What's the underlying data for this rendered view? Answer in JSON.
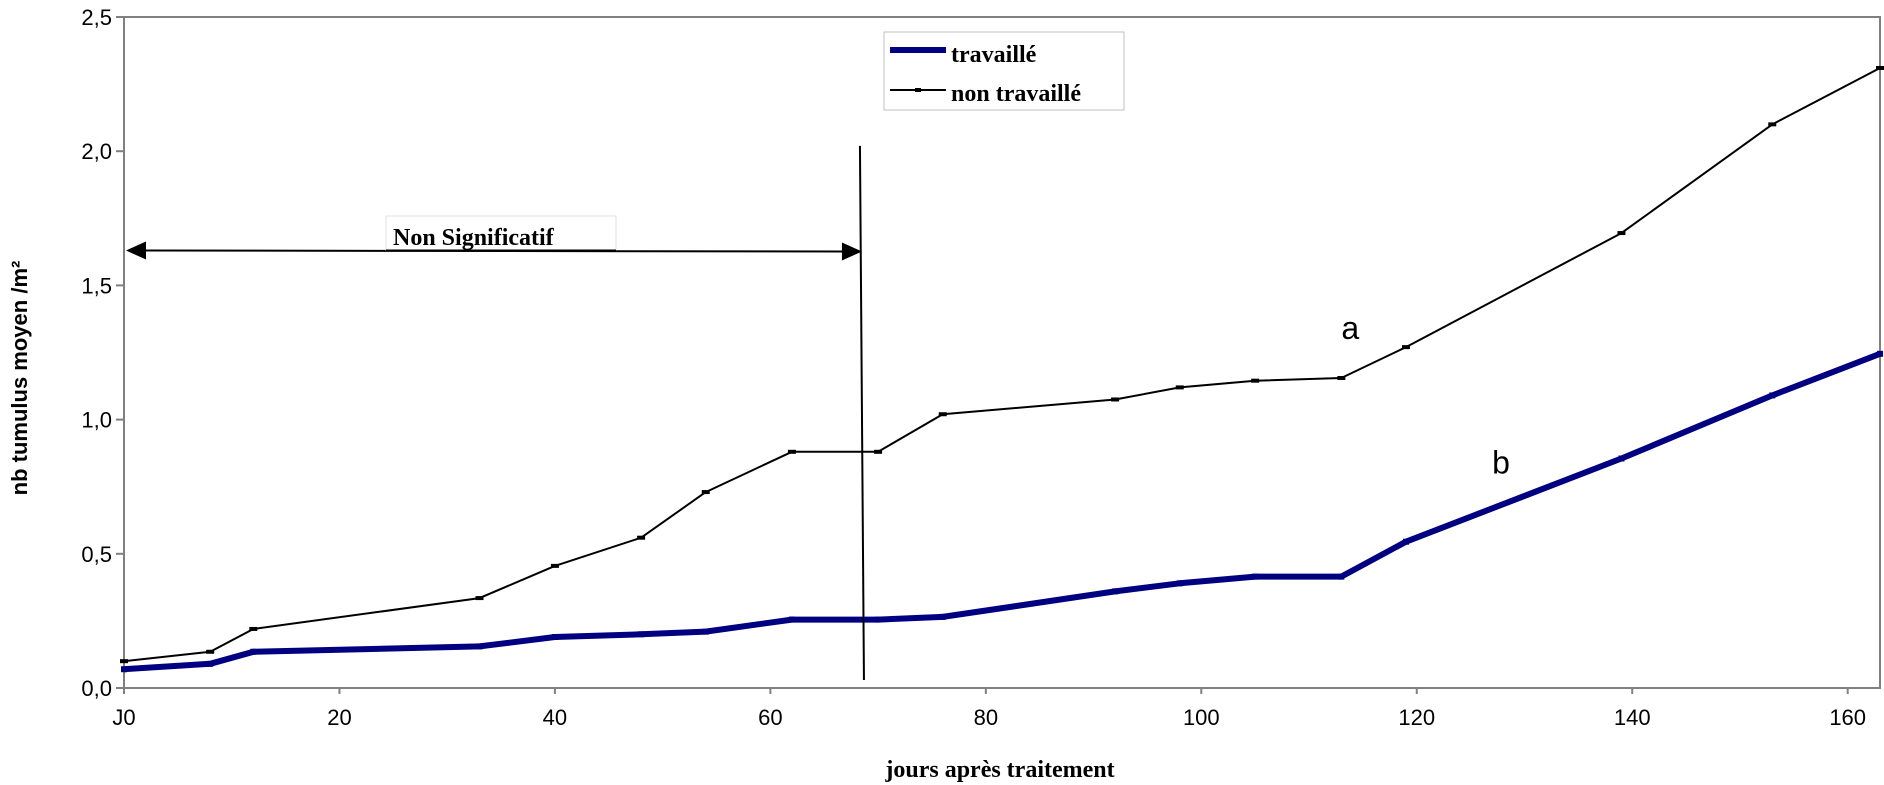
{
  "chart_data": {
    "type": "line",
    "xlabel": "jours après traitement",
    "ylabel": "nb tumulus moyen /m²",
    "xlim": [
      0,
      163
    ],
    "ylim": [
      0,
      2.5
    ],
    "x_ticks": [
      {
        "value": 0,
        "label": "J0"
      },
      {
        "value": 20,
        "label": "20"
      },
      {
        "value": 40,
        "label": "40"
      },
      {
        "value": 60,
        "label": "60"
      },
      {
        "value": 80,
        "label": "80"
      },
      {
        "value": 100,
        "label": "100"
      },
      {
        "value": 120,
        "label": "120"
      },
      {
        "value": 140,
        "label": "140"
      },
      {
        "value": 160,
        "label": "160"
      }
    ],
    "y_ticks": [
      {
        "value": 0,
        "label": "0,0"
      },
      {
        "value": 0.5,
        "label": "0,5"
      },
      {
        "value": 1.0,
        "label": "1,0"
      },
      {
        "value": 1.5,
        "label": "1,5"
      },
      {
        "value": 2.0,
        "label": "2,0"
      },
      {
        "value": 2.5,
        "label": "2,5"
      }
    ],
    "grid": false,
    "legend_position": "top-center",
    "series": [
      {
        "name": "travaillé",
        "color": "#000080",
        "style": "thick",
        "points": [
          [
            0,
            0.07
          ],
          [
            8,
            0.09
          ],
          [
            12,
            0.135
          ],
          [
            33,
            0.155
          ],
          [
            40,
            0.19
          ],
          [
            48,
            0.2
          ],
          [
            54,
            0.21
          ],
          [
            62,
            0.255
          ],
          [
            70,
            0.255
          ],
          [
            76,
            0.265
          ],
          [
            92,
            0.36
          ],
          [
            98,
            0.39
          ],
          [
            105,
            0.415
          ],
          [
            113,
            0.415
          ],
          [
            119,
            0.545
          ],
          [
            139,
            0.855
          ],
          [
            153,
            1.09
          ],
          [
            163,
            1.245
          ]
        ]
      },
      {
        "name": "non travaillé",
        "color": "#000000",
        "style": "thin-with-markers",
        "points": [
          [
            0,
            0.1
          ],
          [
            8,
            0.135
          ],
          [
            12,
            0.22
          ],
          [
            33,
            0.335
          ],
          [
            40,
            0.455
          ],
          [
            48,
            0.56
          ],
          [
            54,
            0.73
          ],
          [
            62,
            0.88
          ],
          [
            70,
            0.88
          ],
          [
            76,
            1.02
          ],
          [
            92,
            1.075
          ],
          [
            98,
            1.12
          ],
          [
            105,
            1.145
          ],
          [
            113,
            1.155
          ],
          [
            119,
            1.27
          ],
          [
            139,
            1.695
          ],
          [
            153,
            2.1
          ],
          [
            163,
            2.31
          ]
        ]
      }
    ],
    "annotations": {
      "range_label": "Non Significatif",
      "range_start": 0,
      "range_end": 68.5,
      "range_y": 1.63,
      "vertical_line_x": 68.5,
      "series_letters": [
        {
          "text": "a",
          "x": 113,
          "y": 1.3
        },
        {
          "text": "b",
          "x": 127,
          "y": 0.8
        }
      ]
    }
  }
}
